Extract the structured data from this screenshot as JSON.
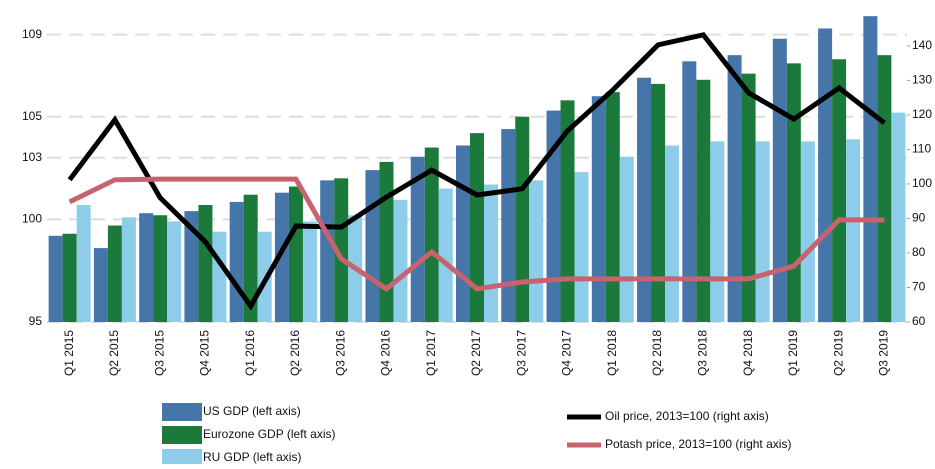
{
  "chart_data": {
    "type": "bar",
    "categories": [
      "Q1 2015",
      "Q2 2015",
      "Q3 2015",
      "Q4 2015",
      "Q1 2016",
      "Q2 2016",
      "Q3 2016",
      "Q4 2016",
      "Q1 2017",
      "Q2 2017",
      "Q3 2017",
      "Q4 2017",
      "Q1 2018",
      "Q2 2018",
      "Q3 2018",
      "Q4 2018",
      "Q1 2019",
      "Q2 2019",
      "Q3 2019"
    ],
    "series": [
      {
        "name": "US GDP (left axis)",
        "type": "bar",
        "color": "#4675aa",
        "values": [
          99.2,
          98.6,
          100.3,
          100.4,
          100.85,
          101.3,
          101.9,
          102.4,
          103.05,
          103.6,
          104.4,
          105.3,
          106.0,
          106.9,
          107.7,
          108.0,
          108.8,
          109.3,
          109.9
        ]
      },
      {
        "name": "Eurozone GDP (left axis)",
        "type": "bar",
        "color": "#1b7a3b",
        "values": [
          99.3,
          99.7,
          100.2,
          100.7,
          101.2,
          101.6,
          102.0,
          102.8,
          103.5,
          104.2,
          105.0,
          105.8,
          106.2,
          106.6,
          106.8,
          107.1,
          107.6,
          107.8,
          108.0
        ]
      },
      {
        "name": "RU GDP (left axis)",
        "type": "bar",
        "color": "#8ecdea",
        "values": [
          100.7,
          100.1,
          99.9,
          99.4,
          99.4,
          99.9,
          100.2,
          100.95,
          101.5,
          101.7,
          101.9,
          102.3,
          103.05,
          103.6,
          103.8,
          103.8,
          103.8,
          103.9,
          105.2
        ]
      },
      {
        "name": "Oil price, 2013=100 (right axis)",
        "type": "line",
        "axis": "y2",
        "color": "#000000",
        "values": [
          101.2,
          118.6,
          96,
          83.2,
          64.6,
          87.8,
          87.5,
          96.2,
          104,
          96.8,
          98.6,
          115.4,
          127.2,
          140.3,
          143.2,
          126.4,
          118.8,
          127.8,
          117.7
        ]
      },
      {
        "name": "Potash price, 2013=100 (right axis)",
        "type": "line",
        "axis": "y2",
        "color": "#c9626f",
        "values": [
          94.8,
          101.2,
          101.4,
          101.4,
          101.4,
          101.4,
          78.3,
          69.6,
          80.3,
          69.6,
          71.6,
          72.5,
          72.5,
          72.5,
          72.5,
          72.5,
          76.2,
          89.6,
          89.6
        ]
      }
    ],
    "ylim": [
      95,
      110.2
    ],
    "yticks": [
      95,
      100,
      103,
      105,
      109
    ],
    "y2lim": [
      60,
      150.4
    ],
    "y2ticks": [
      60,
      70,
      80,
      90,
      100,
      110,
      120,
      130,
      140
    ],
    "grid": true
  }
}
